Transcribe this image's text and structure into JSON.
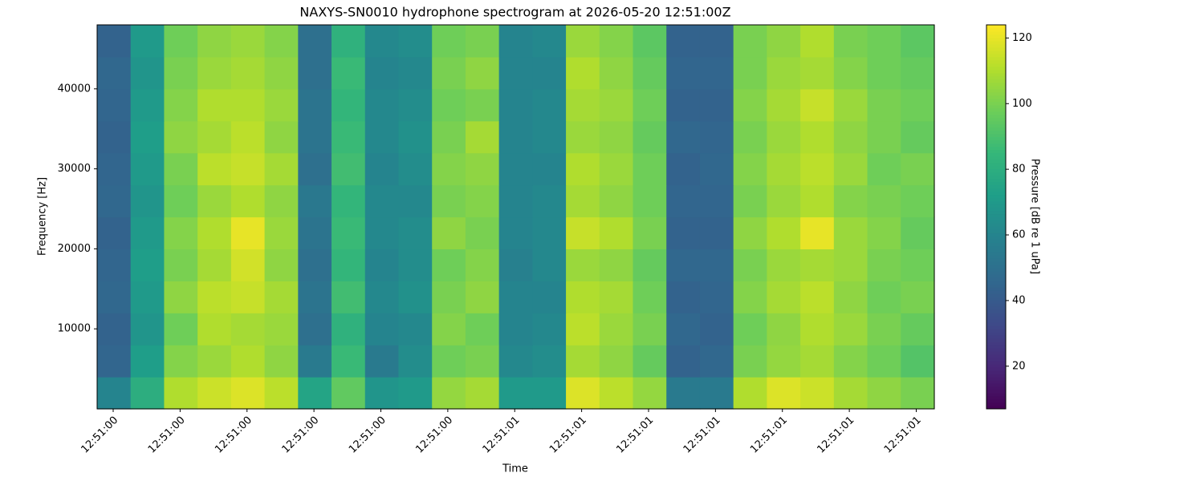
{
  "chart_data": {
    "type": "heatmap",
    "title": "NAXYS-SN0010 hydrophone spectrogram at 2026-05-20 12:51:00Z",
    "xlabel": "Time",
    "ylabel": "Frequency [Hz]",
    "colormap": "viridis",
    "xlim": [
      -0.24,
      12.27
    ],
    "xticks": [
      {
        "value": 0,
        "label": "12:51:00"
      },
      {
        "value": 1,
        "label": "12:51:00"
      },
      {
        "value": 2,
        "label": "12:51:00"
      },
      {
        "value": 3,
        "label": "12:51:00"
      },
      {
        "value": 4,
        "label": "12:51:00"
      },
      {
        "value": 5,
        "label": "12:51:00"
      },
      {
        "value": 6,
        "label": "12:51:01"
      },
      {
        "value": 7,
        "label": "12:51:01"
      },
      {
        "value": 8,
        "label": "12:51:01"
      },
      {
        "value": 9,
        "label": "12:51:01"
      },
      {
        "value": 10,
        "label": "12:51:01"
      },
      {
        "value": 11,
        "label": "12:51:01"
      },
      {
        "value": 12,
        "label": "12:51:01"
      }
    ],
    "ylim": [
      0,
      48000
    ],
    "yticks": [
      10000,
      20000,
      30000,
      40000
    ],
    "colorbar": {
      "label": "Pressure [dB re 1 uPa]",
      "clim": [
        7,
        124
      ],
      "ticks": [
        20,
        40,
        60,
        80,
        100,
        120
      ]
    },
    "z": [
      [
        60,
        80,
        110,
        115,
        118,
        112,
        75,
        95,
        68,
        70,
        105,
        108,
        70,
        70,
        118,
        112,
        105,
        55,
        55,
        110,
        118,
        115,
        108,
        104,
        100
      ],
      [
        45,
        72,
        102,
        106,
        110,
        104,
        55,
        86,
        55,
        64,
        98,
        100,
        62,
        64,
        108,
        104,
        96,
        44,
        46,
        100,
        105,
        108,
        102,
        98,
        92
      ],
      [
        44,
        68,
        98,
        110,
        108,
        106,
        50,
        82,
        60,
        62,
        102,
        98,
        60,
        62,
        112,
        106,
        100,
        46,
        44,
        98,
        104,
        110,
        106,
        100,
        96
      ],
      [
        46,
        70,
        104,
        112,
        114,
        108,
        52,
        88,
        62,
        66,
        100,
        104,
        60,
        60,
        110,
        108,
        98,
        44,
        45,
        102,
        108,
        112,
        104,
        98,
        100
      ],
      [
        45,
        72,
        100,
        108,
        116,
        104,
        50,
        84,
        60,
        64,
        98,
        102,
        58,
        62,
        106,
        104,
        96,
        46,
        46,
        100,
        106,
        108,
        106,
        100,
        98
      ],
      [
        44,
        70,
        102,
        110,
        120,
        106,
        52,
        86,
        62,
        64,
        104,
        100,
        60,
        62,
        114,
        110,
        100,
        44,
        44,
        104,
        110,
        120,
        106,
        102,
        96
      ],
      [
        46,
        68,
        98,
        106,
        110,
        104,
        54,
        84,
        62,
        62,
        100,
        102,
        60,
        62,
        108,
        104,
        98,
        45,
        45,
        100,
        106,
        110,
        102,
        100,
        98
      ],
      [
        45,
        70,
        100,
        112,
        114,
        108,
        50,
        88,
        60,
        64,
        102,
        104,
        60,
        60,
        110,
        106,
        98,
        44,
        46,
        102,
        108,
        112,
        106,
        98,
        100
      ],
      [
        44,
        72,
        104,
        108,
        112,
        104,
        52,
        86,
        62,
        66,
        100,
        108,
        60,
        62,
        106,
        104,
        96,
        46,
        45,
        100,
        106,
        110,
        104,
        100,
        96
      ],
      [
        45,
        70,
        102,
        110,
        110,
        106,
        52,
        84,
        62,
        64,
        98,
        100,
        60,
        62,
        108,
        106,
        98,
        44,
        44,
        102,
        108,
        114,
        106,
        100,
        98
      ],
      [
        46,
        68,
        100,
        106,
        108,
        104,
        50,
        86,
        60,
        62,
        100,
        104,
        60,
        60,
        110,
        104,
        96,
        45,
        45,
        100,
        106,
        108,
        102,
        98,
        96
      ],
      [
        44,
        70,
        98,
        104,
        106,
        102,
        50,
        82,
        62,
        64,
        98,
        100,
        60,
        62,
        106,
        102,
        94,
        44,
        44,
        100,
        104,
        110,
        100,
        98,
        94
      ]
    ]
  }
}
